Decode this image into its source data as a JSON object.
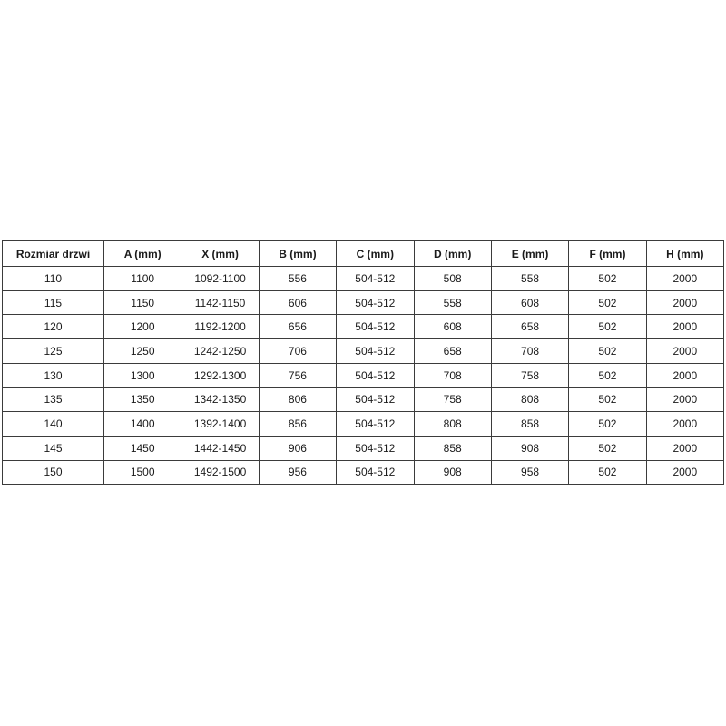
{
  "colors": {
    "border": "#3b3b3b",
    "text": "#1a1a1a",
    "background": "#ffffff"
  },
  "table": {
    "name": "door-size-specification-table",
    "headers": [
      "Rozmiar drzwi",
      "A (mm)",
      "X (mm)",
      "B (mm)",
      "C (mm)",
      "D (mm)",
      "E (mm)",
      "F (mm)",
      "H (mm)"
    ],
    "rows": [
      [
        "110",
        "1100",
        "1092-1100",
        "556",
        "504-512",
        "508",
        "558",
        "502",
        "2000"
      ],
      [
        "115",
        "1150",
        "1142-1150",
        "606",
        "504-512",
        "558",
        "608",
        "502",
        "2000"
      ],
      [
        "120",
        "1200",
        "1192-1200",
        "656",
        "504-512",
        "608",
        "658",
        "502",
        "2000"
      ],
      [
        "125",
        "1250",
        "1242-1250",
        "706",
        "504-512",
        "658",
        "708",
        "502",
        "2000"
      ],
      [
        "130",
        "1300",
        "1292-1300",
        "756",
        "504-512",
        "708",
        "758",
        "502",
        "2000"
      ],
      [
        "135",
        "1350",
        "1342-1350",
        "806",
        "504-512",
        "758",
        "808",
        "502",
        "2000"
      ],
      [
        "140",
        "1400",
        "1392-1400",
        "856",
        "504-512",
        "808",
        "858",
        "502",
        "2000"
      ],
      [
        "145",
        "1450",
        "1442-1450",
        "906",
        "504-512",
        "858",
        "908",
        "502",
        "2000"
      ],
      [
        "150",
        "1500",
        "1492-1500",
        "956",
        "504-512",
        "908",
        "958",
        "502",
        "2000"
      ]
    ]
  }
}
